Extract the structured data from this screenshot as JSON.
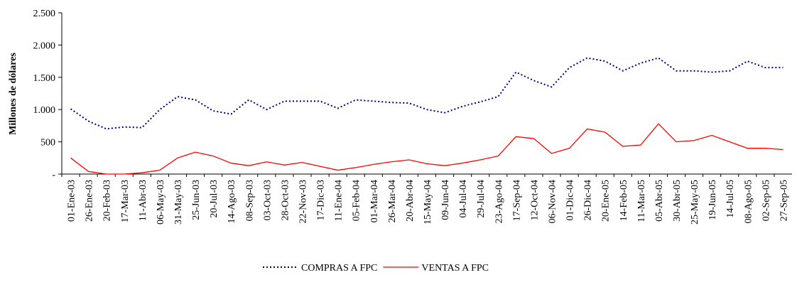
{
  "chart_data": {
    "type": "line",
    "y_label": "Millones de dólares",
    "categories": [
      "01-Ene-03",
      "26-Ene-03",
      "20-Feb-03",
      "17-Mar-03",
      "11-Abr-03",
      "06-May-03",
      "31-May-03",
      "25-Jun-03",
      "20-Jul-03",
      "14-Ago-03",
      "08-Sep-03",
      "03-Oct-03",
      "28-Oct-03",
      "22-Nov-03",
      "17-Dic-03",
      "11-Ene-04",
      "05-Feb-04",
      "01-Mar-04",
      "26-Mar-04",
      "20-Abr-04",
      "15-May-04",
      "09-Jun-04",
      "04-Jul-04",
      "29-Jul-04",
      "23-Ago-04",
      "17-Sep-04",
      "12-Oct-04",
      "06-Nov-04",
      "01-Dic-04",
      "26-Dic-04",
      "20-Ene-05",
      "14-Feb-05",
      "11-Mar-05",
      "05-Abr-05",
      "30-Abr-05",
      "25-May-05",
      "19-Jun-05",
      "14-Jul-05",
      "08-Ago-05",
      "02-Sep-05",
      "27-Sep-05"
    ],
    "series": [
      {
        "name": "COMPRAS A FPC",
        "color": "#000080",
        "dash": "dotted",
        "values": [
          1010,
          820,
          700,
          730,
          720,
          1000,
          1200,
          1150,
          980,
          930,
          1150,
          1000,
          1130,
          1130,
          1130,
          1020,
          1150,
          1130,
          1110,
          1100,
          1000,
          950,
          1050,
          1120,
          1200,
          1580,
          1450,
          1350,
          1650,
          1800,
          1750,
          1600,
          1720,
          1800,
          1600,
          1600,
          1580,
          1600,
          1750,
          1650,
          1650
        ]
      },
      {
        "name": "VENTAS A FPC",
        "color": "#ff0000",
        "dash": "solid",
        "values": [
          250,
          40,
          0,
          0,
          20,
          60,
          250,
          340,
          280,
          170,
          130,
          190,
          140,
          180,
          120,
          60,
          100,
          150,
          190,
          220,
          160,
          130,
          170,
          220,
          280,
          580,
          550,
          320,
          400,
          700,
          650,
          430,
          450,
          780,
          500,
          520,
          600,
          500,
          400,
          400,
          380
        ]
      }
    ],
    "ylim": [
      0,
      2500
    ],
    "yticks": [
      {
        "value": 0,
        "label": "-"
      },
      500,
      {
        "value": 1000,
        "label": "1.000"
      },
      {
        "value": 1500,
        "label": "1.500"
      },
      {
        "value": 2000,
        "label": "2.000"
      },
      {
        "value": 2500,
        "label": "2.500"
      }
    ],
    "grid": false,
    "legend": "bottom"
  }
}
